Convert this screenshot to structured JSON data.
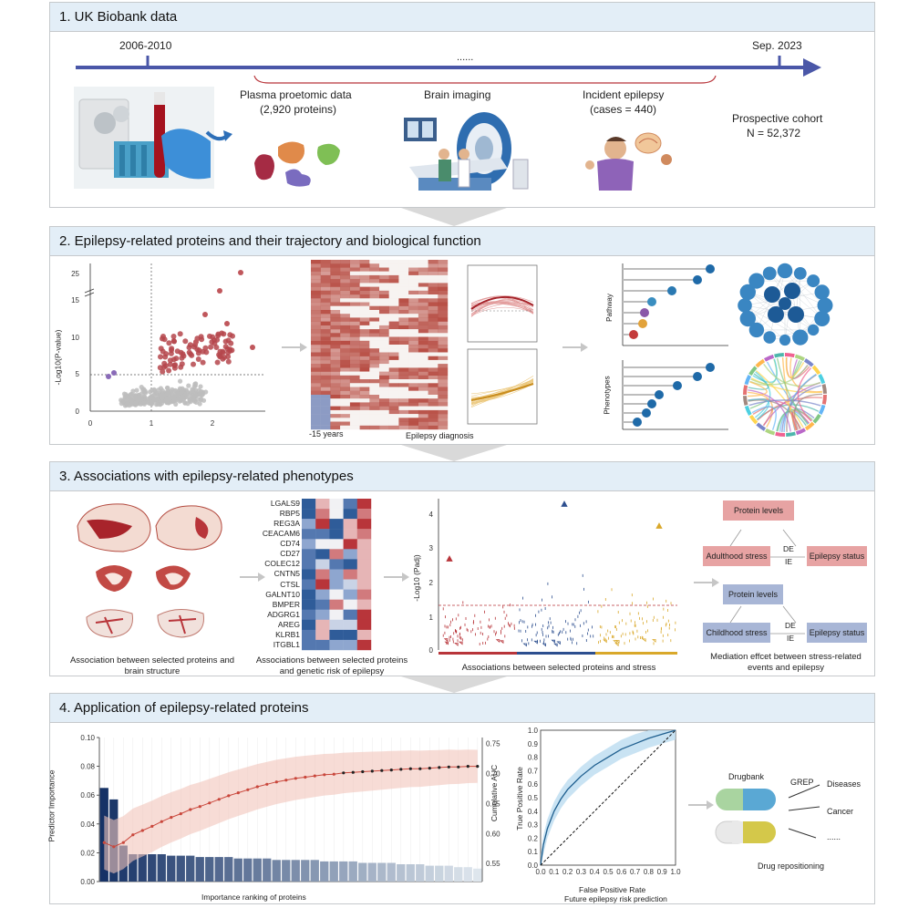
{
  "sections": {
    "s1": {
      "title": "1. UK Biobank data",
      "date_start": "2006-2010",
      "date_end": "Sep. 2023",
      "ellipsis": "......",
      "proteomic_label": "Plasma proetomic data",
      "proteomic_sub": "(2,920 proteins)",
      "imaging_label": "Brain imaging",
      "epilepsy_label": "Incident epilepsy",
      "epilepsy_sub": "(cases = 440)",
      "cohort_label": "Prospective cohort",
      "cohort_n": "N = 52,372"
    },
    "s2": {
      "title": "2. Epilepsy-related proteins and their trajectory and biological function",
      "volcano_ylabel": "-Log10(P-value)",
      "volcano_yticks": [
        "0",
        "5",
        "10",
        "15",
        "25"
      ],
      "volcano_xticks": [
        "0",
        "1",
        "2"
      ],
      "heat_left": "-15 years",
      "heat_right": "Epilepsy diagnosis",
      "lollipop_top_label": "Pathway",
      "lollipop_bottom_label": "Phenotypes"
    },
    "s3": {
      "title": "3. Associations with epilepsy-related phenotypes",
      "brain_caption": "Association between selected proteins and brain structure",
      "genes": [
        "LGALS9",
        "RBP5",
        "REG3A",
        "CEACAM6",
        "CD74",
        "CD27",
        "COLEC12",
        "CNTN5",
        "CTSL",
        "GALNT10",
        "BMPER",
        "ADGRG1",
        "AREG",
        "KLRB1",
        "ITGBL1"
      ],
      "genetic_caption": "Associations between selected proteins and genetic risk of epilepsy",
      "stress_ylabel": "-Log10 (Padj)",
      "stress_yticks": [
        "0",
        "1",
        "2",
        "3",
        "4"
      ],
      "stress_caption": "Associations between selected proteins and stress",
      "med_protein_levels": "Protein levels",
      "med_adult_stress": "Adulthood stress",
      "med_child_stress": "Childhood stress",
      "med_epilepsy_status": "Epilepsy status",
      "med_de": "DE",
      "med_ie": "IE",
      "mediation_caption": "Mediation effcet between stress-related events and epilepsy"
    },
    "s4": {
      "title": "4. Application of epilepsy-related proteins",
      "imp_ylabel": "Predictor Importance",
      "imp_y2label": "Cumulative AUC",
      "imp_xlabel": "Importance ranking of proteins",
      "roc_ylabel": "True Positive Rate",
      "roc_xlabel": "False Positive Rate",
      "roc_caption": "Future epilepsy risk prediction",
      "drugbank_label": "Drugbank",
      "grep_label": "GREP",
      "diseases_label": "Diseases",
      "cancer_label": "Cancer",
      "more_label": "......",
      "repositioning_label": "Drug repositioning"
    }
  },
  "chart_data": [
    {
      "type": "bar",
      "title": "",
      "xlabel": "Importance ranking of proteins",
      "ylabel": "Predictor Importance",
      "ylim": [
        0,
        0.1
      ],
      "yticks": [
        0.0,
        0.02,
        0.04,
        0.06,
        0.08,
        0.1
      ],
      "values": [
        0.065,
        0.057,
        0.025,
        0.019,
        0.019,
        0.019,
        0.019,
        0.018,
        0.018,
        0.018,
        0.017,
        0.017,
        0.017,
        0.017,
        0.016,
        0.016,
        0.016,
        0.016,
        0.015,
        0.015,
        0.015,
        0.015,
        0.015,
        0.014,
        0.014,
        0.014,
        0.014,
        0.013,
        0.013,
        0.013,
        0.013,
        0.012,
        0.012,
        0.012,
        0.011,
        0.011,
        0.011,
        0.01,
        0.01,
        0.009
      ],
      "secondary": {
        "type": "line",
        "name": "Cumulative AUC",
        "ylim": [
          0.52,
          0.76
        ],
        "yticks": [
          0.55,
          0.6,
          0.65,
          0.7,
          0.75
        ],
        "values": [
          0.585,
          0.578,
          0.585,
          0.598,
          0.605,
          0.612,
          0.62,
          0.627,
          0.633,
          0.64,
          0.645,
          0.651,
          0.657,
          0.663,
          0.668,
          0.673,
          0.678,
          0.682,
          0.686,
          0.689,
          0.692,
          0.694,
          0.696,
          0.698,
          0.699,
          0.701,
          0.702,
          0.703,
          0.704,
          0.705,
          0.706,
          0.707,
          0.708,
          0.708,
          0.709,
          0.71,
          0.711,
          0.711,
          0.712,
          0.712
        ],
        "band_width": 0.045
      }
    },
    {
      "type": "line",
      "title": "",
      "xlabel": "False Positive Rate",
      "ylabel": "True Positive Rate",
      "xlim": [
        0,
        1
      ],
      "ylim": [
        0,
        1
      ],
      "ticks": [
        "0.0",
        "0.1",
        "0.2",
        "0.3",
        "0.4",
        "0.5",
        "0.6",
        "0.7",
        "0.8",
        "0.9",
        "1.0"
      ],
      "x": [
        0,
        0.02,
        0.05,
        0.1,
        0.15,
        0.2,
        0.3,
        0.4,
        0.5,
        0.6,
        0.7,
        0.8,
        0.9,
        1.0
      ],
      "y": [
        0,
        0.15,
        0.27,
        0.4,
        0.49,
        0.56,
        0.66,
        0.74,
        0.8,
        0.86,
        0.9,
        0.94,
        0.97,
        1.0
      ],
      "band_width": 0.07
    }
  ],
  "colors": {
    "timeline": "#4a57a8",
    "red": "#b8353a",
    "blue": "#2d4f8f",
    "gold": "#d9a82a",
    "panel_header": "#e3eef7"
  }
}
